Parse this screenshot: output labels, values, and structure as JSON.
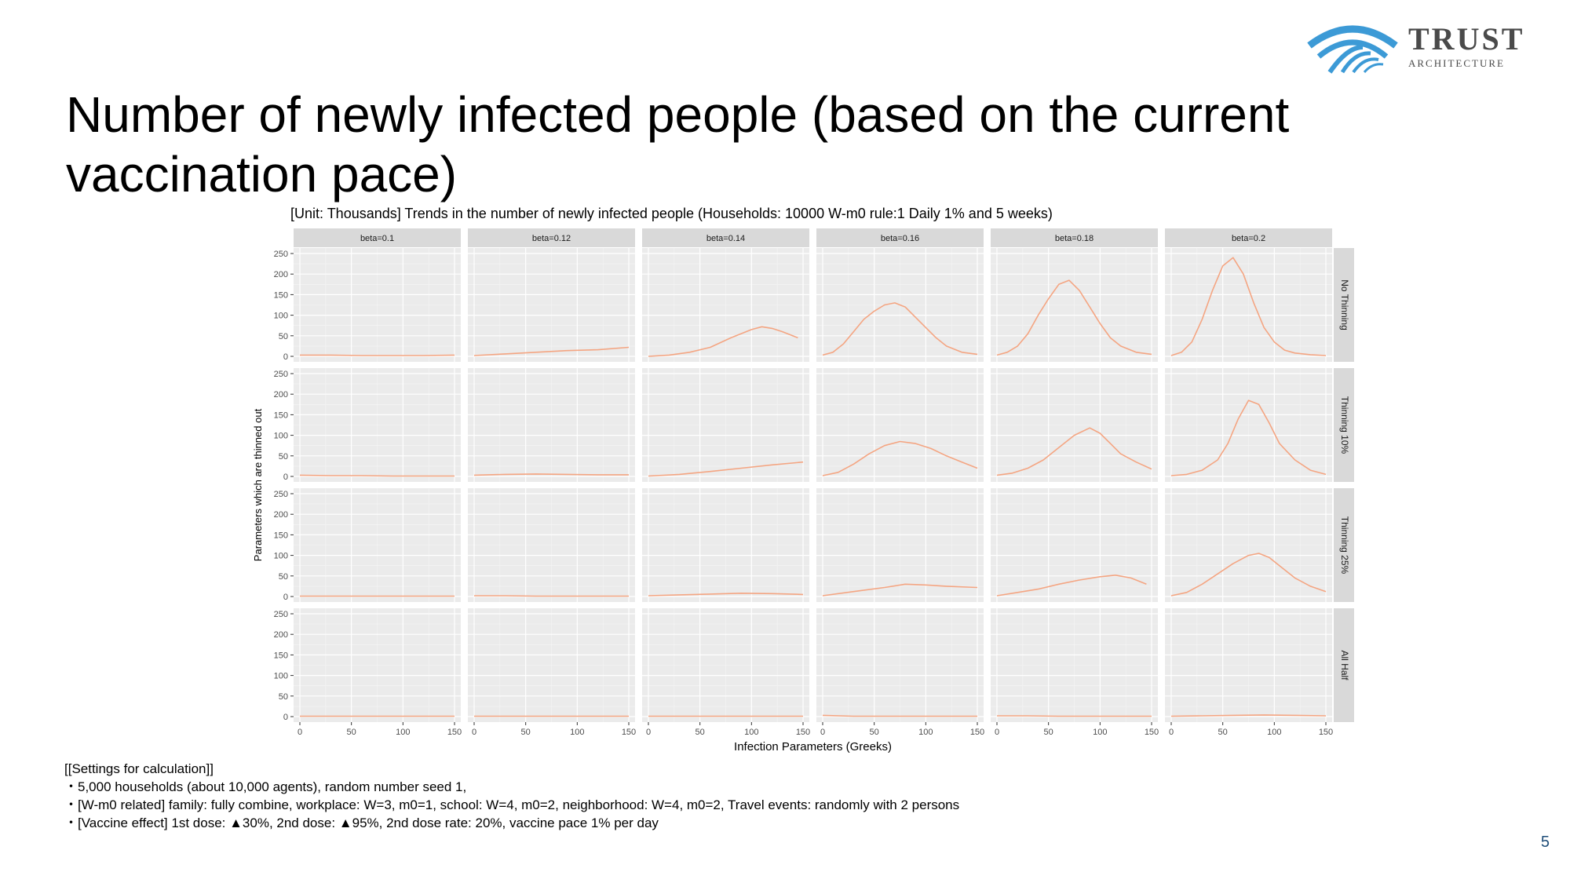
{
  "slide": {
    "title": "Number of newly infected people (based on the current vaccination pace)",
    "page_number": "5"
  },
  "logo": {
    "word": "TRUST",
    "sub": "ARCHITECTURE",
    "color": "#3c9ad6"
  },
  "settings": {
    "heading": "[[Settings for calculation]]",
    "lines": [
      "・5,000 households (about 10,000 agents), random number seed 1,",
      "・[W-m0 related] family: fully combine, workplace: W=3, m0=1, school: W=4, m0=2, neighborhood: W=4, m0=2, Travel events: randomly with 2 persons",
      "・[Vaccine effect] 1st dose: ▲30%, 2nd dose: ▲95%, 2nd dose rate: 20%, vaccine pace 1% per day"
    ]
  },
  "chart_data": {
    "type": "line",
    "title": "[Unit: Thousands] Trends in the number of newly infected people (Households: 10000 W-m0 rule:1 Daily 1% and 5 weeks)",
    "xlabel": "Infection Parameters (Greeks)",
    "ylabel": "Parameters which are thinned out",
    "xlim": [
      0,
      150
    ],
    "ylim": [
      0,
      250
    ],
    "xticks": [
      0,
      50,
      100,
      150
    ],
    "yticks": [
      0,
      50,
      100,
      150,
      200,
      250
    ],
    "columns": [
      "beta=0.1",
      "beta=0.12",
      "beta=0.14",
      "beta=0.16",
      "beta=0.18",
      "beta=0.2"
    ],
    "rows": [
      "No Thinning",
      "Thinning 10%",
      "Thinning 25%",
      "All Half"
    ],
    "line_color": "#f4a582",
    "panel_bg": "#ebebeb",
    "strip_bg": "#d9d9d9",
    "grid": true,
    "panels": [
      [
        {
          "x": [
            0,
            30,
            60,
            90,
            120,
            150
          ],
          "y": [
            3,
            3,
            2,
            2,
            2,
            3
          ]
        },
        {
          "x": [
            0,
            30,
            60,
            90,
            120,
            150
          ],
          "y": [
            2,
            6,
            10,
            14,
            16,
            22
          ]
        },
        {
          "x": [
            0,
            20,
            40,
            60,
            80,
            100,
            110,
            120,
            130,
            145
          ],
          "y": [
            0,
            3,
            10,
            22,
            45,
            65,
            72,
            68,
            60,
            45
          ]
        },
        {
          "x": [
            0,
            10,
            20,
            30,
            40,
            50,
            60,
            70,
            80,
            90,
            100,
            110,
            120,
            135,
            150
          ],
          "y": [
            3,
            10,
            30,
            60,
            90,
            110,
            125,
            130,
            120,
            95,
            70,
            45,
            25,
            10,
            5
          ]
        },
        {
          "x": [
            0,
            10,
            20,
            30,
            40,
            50,
            60,
            70,
            80,
            90,
            100,
            110,
            120,
            135,
            150
          ],
          "y": [
            3,
            10,
            25,
            55,
            100,
            140,
            175,
            185,
            160,
            120,
            80,
            45,
            25,
            10,
            5
          ]
        },
        {
          "x": [
            0,
            10,
            20,
            30,
            40,
            50,
            60,
            70,
            80,
            90,
            100,
            110,
            120,
            135,
            150
          ],
          "y": [
            2,
            10,
            35,
            90,
            160,
            220,
            240,
            200,
            130,
            70,
            35,
            15,
            8,
            4,
            2
          ]
        }
      ],
      [
        {
          "x": [
            0,
            30,
            60,
            90,
            120,
            150
          ],
          "y": [
            3,
            2,
            2,
            1,
            1,
            1
          ]
        },
        {
          "x": [
            0,
            30,
            60,
            90,
            120,
            150
          ],
          "y": [
            3,
            5,
            6,
            5,
            4,
            4
          ]
        },
        {
          "x": [
            0,
            30,
            60,
            90,
            120,
            150
          ],
          "y": [
            1,
            5,
            12,
            20,
            28,
            35
          ]
        },
        {
          "x": [
            0,
            15,
            30,
            45,
            60,
            75,
            90,
            105,
            120,
            135,
            150
          ],
          "y": [
            2,
            10,
            30,
            55,
            75,
            85,
            80,
            68,
            50,
            35,
            20
          ]
        },
        {
          "x": [
            0,
            15,
            30,
            45,
            60,
            75,
            90,
            100,
            110,
            120,
            135,
            150
          ],
          "y": [
            3,
            8,
            20,
            40,
            70,
            100,
            118,
            105,
            80,
            55,
            35,
            18
          ]
        },
        {
          "x": [
            0,
            15,
            30,
            45,
            55,
            65,
            75,
            85,
            95,
            105,
            120,
            135,
            150
          ],
          "y": [
            2,
            5,
            15,
            40,
            80,
            140,
            185,
            175,
            130,
            80,
            40,
            15,
            5
          ]
        }
      ],
      [
        {
          "x": [
            0,
            30,
            60,
            90,
            120,
            150
          ],
          "y": [
            1,
            1,
            1,
            1,
            1,
            1
          ]
        },
        {
          "x": [
            0,
            30,
            60,
            90,
            120,
            150
          ],
          "y": [
            2,
            2,
            1,
            1,
            1,
            1
          ]
        },
        {
          "x": [
            0,
            30,
            60,
            90,
            120,
            150
          ],
          "y": [
            2,
            4,
            6,
            8,
            7,
            5
          ]
        },
        {
          "x": [
            0,
            30,
            60,
            80,
            100,
            120,
            150
          ],
          "y": [
            2,
            12,
            22,
            30,
            28,
            25,
            22
          ]
        },
        {
          "x": [
            0,
            20,
            40,
            60,
            80,
            100,
            115,
            130,
            145
          ],
          "y": [
            2,
            10,
            18,
            30,
            40,
            48,
            52,
            45,
            30
          ]
        },
        {
          "x": [
            0,
            15,
            30,
            45,
            60,
            75,
            85,
            95,
            105,
            120,
            135,
            150
          ],
          "y": [
            2,
            10,
            30,
            55,
            80,
            100,
            105,
            95,
            75,
            45,
            25,
            12
          ]
        }
      ],
      [
        {
          "x": [
            0,
            30,
            60,
            90,
            120,
            150
          ],
          "y": [
            1,
            1,
            1,
            1,
            1,
            1
          ]
        },
        {
          "x": [
            0,
            30,
            60,
            90,
            120,
            150
          ],
          "y": [
            1,
            1,
            1,
            1,
            1,
            1
          ]
        },
        {
          "x": [
            0,
            30,
            60,
            90,
            120,
            150
          ],
          "y": [
            1,
            1,
            1,
            1,
            1,
            1
          ]
        },
        {
          "x": [
            0,
            30,
            60,
            90,
            120,
            150
          ],
          "y": [
            3,
            1,
            1,
            1,
            1,
            1
          ]
        },
        {
          "x": [
            0,
            30,
            60,
            90,
            120,
            150
          ],
          "y": [
            2,
            2,
            1,
            1,
            1,
            1
          ]
        },
        {
          "x": [
            0,
            30,
            60,
            90,
            120,
            150
          ],
          "y": [
            1,
            2,
            3,
            4,
            3,
            2
          ]
        }
      ]
    ]
  }
}
